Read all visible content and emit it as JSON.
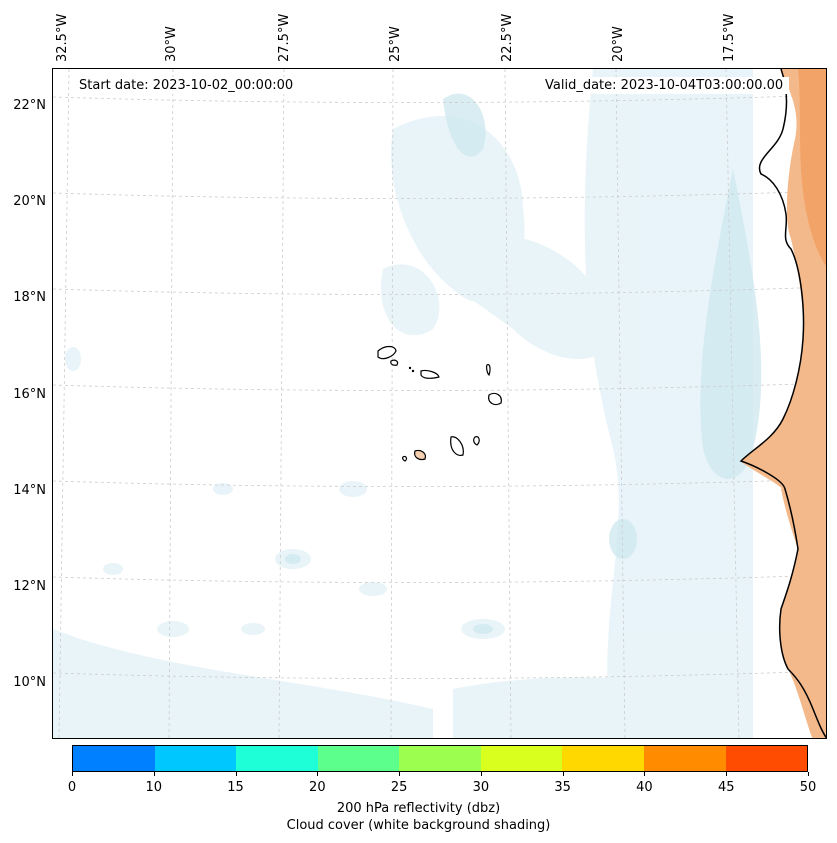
{
  "map": {
    "start_date": "Start date: 2023-10-02_00:00:00",
    "valid_date": "Valid_date: 2023-10-04T03:00:00.00",
    "lon_labels": [
      "32.5°W",
      "30°W",
      "27.5°W",
      "25°W",
      "22.5°W",
      "20°W",
      "17.5°W"
    ],
    "lat_labels": [
      "22°N",
      "20°N",
      "18°N",
      "16°N",
      "14°N",
      "12°N",
      "10°N"
    ],
    "colors": {
      "cloud_light": "#e6f3f8",
      "cloud_mid": "#cfe8f0",
      "land_orange": "#f4b98a",
      "land_orange_dark": "#ef9a5a",
      "grid": "#cccccc",
      "coast": "#000000"
    }
  },
  "colorbar": {
    "ticks": [
      "0",
      "10",
      "15",
      "20",
      "25",
      "30",
      "35",
      "40",
      "45",
      "50"
    ],
    "colors": [
      "#0080ff",
      "#00c8ff",
      "#1effd8",
      "#5cff8c",
      "#9cff50",
      "#d8ff1e",
      "#ffd800",
      "#ff8c00",
      "#ff4c00"
    ],
    "label_line1": "200 hPa reflectivity (dbz)",
    "label_line2": "Cloud cover (white background shading)"
  }
}
